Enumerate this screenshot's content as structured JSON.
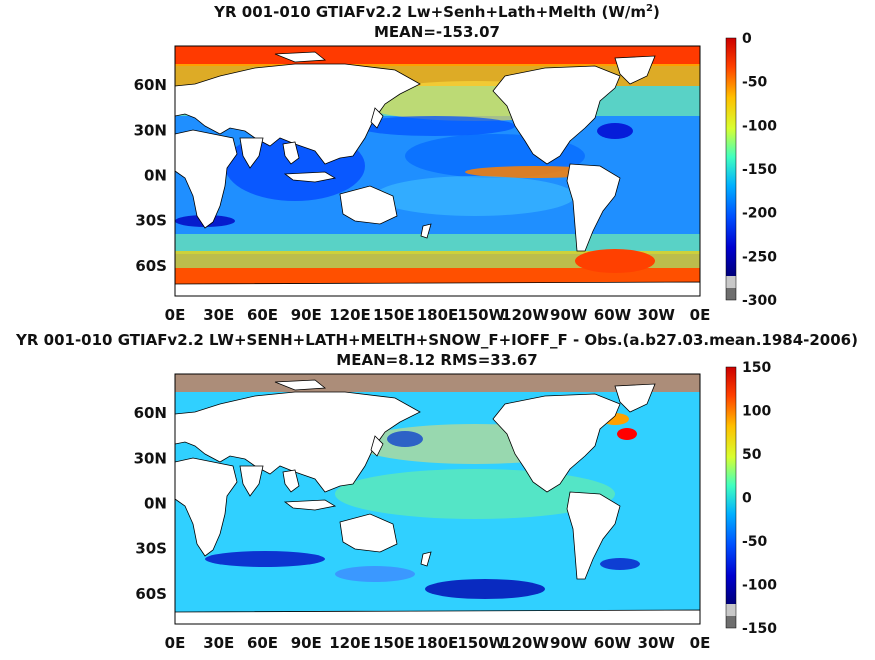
{
  "chart_data": [
    {
      "type": "heatmap",
      "title_main": "YR 001-010 GTIAFv2.2 Lw+Senh+Lath+Melth (W/m",
      "title_sup": "2",
      "title_close": ")",
      "subtitle": "MEAN=-153.07",
      "x_ticks": [
        "0E",
        "30E",
        "60E",
        "90E",
        "120E",
        "150E",
        "180E",
        "150W",
        "120W",
        "90W",
        "60W",
        "30W",
        "0E"
      ],
      "y_ticks": [
        "60N",
        "30N",
        "0N",
        "30S",
        "60S"
      ],
      "y_tick_lats": [
        60,
        30,
        0,
        -30,
        -60
      ],
      "xlim": [
        0,
        360
      ],
      "ylim": [
        -80,
        86
      ],
      "colorbar": {
        "range": [
          -300,
          0
        ],
        "ticks": [
          "0",
          "-50",
          "-100",
          "-150",
          "-200",
          "-250",
          "-300"
        ],
        "tick_values": [
          0,
          -50,
          -100,
          -150,
          -200,
          -250,
          -300
        ]
      },
      "mean": -153.07
    },
    {
      "type": "heatmap",
      "title": "YR 001-010 GTIAFv2.2 LW+SENH+LATH+MELTH+SNOW_F+IOFF_F - Obs.(a.b27.03.mean.1984-2006)",
      "subtitle": "MEAN=8.12 RMS=33.67",
      "x_ticks": [
        "0E",
        "30E",
        "60E",
        "90E",
        "120E",
        "150E",
        "180E",
        "150W",
        "120W",
        "90W",
        "60W",
        "30W",
        "0E"
      ],
      "y_ticks": [
        "60N",
        "30N",
        "0N",
        "30S",
        "60S"
      ],
      "y_tick_lats": [
        60,
        30,
        0,
        -30,
        -60
      ],
      "xlim": [
        0,
        360
      ],
      "ylim": [
        -80,
        86
      ],
      "colorbar": {
        "range": [
          -150,
          150
        ],
        "ticks": [
          "150",
          "100",
          "50",
          "0",
          "-50",
          "-100",
          "-150"
        ],
        "tick_values": [
          150,
          100,
          50,
          0,
          -50,
          -100,
          -150
        ]
      },
      "mean": 8.12,
      "rms": 33.67
    }
  ],
  "colors": {
    "ocean_base_top": "#1f8fff",
    "land": "#ffffff",
    "colormap": [
      "#000090",
      "#0000ff",
      "#0080ff",
      "#00ffff",
      "#80ff80",
      "#ffff00",
      "#ff8000",
      "#ff0000",
      "#800000"
    ],
    "colorbar_gray": "#c8c8c8",
    "colorbar_darkgray": "#6e6e6e"
  }
}
